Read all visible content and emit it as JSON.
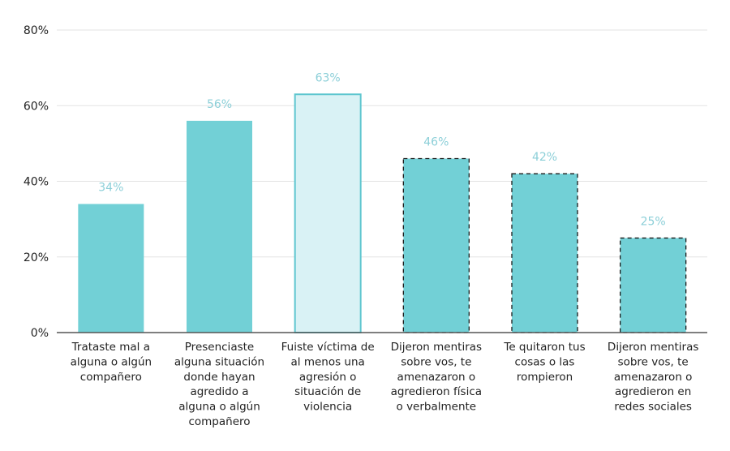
{
  "chart_data": {
    "type": "bar",
    "categories": [
      [
        "Trataste mal a",
        "alguna o algún",
        "compañero"
      ],
      [
        "Presenciaste",
        "alguna situación",
        "donde hayan",
        "agredido a",
        "alguna o algún",
        "compañero"
      ],
      [
        "Fuiste víctima de",
        "al menos una",
        "agresión o",
        "situación de",
        "violencia"
      ],
      [
        "Dijeron mentiras",
        "sobre vos, te",
        "amenazaron o",
        "agredieron física",
        "o verbalmente"
      ],
      [
        "Te quitaron tus",
        "cosas o las",
        "rompieron"
      ],
      [
        "Dijeron mentiras",
        "sobre vos, te",
        "amenazaron o",
        "agredieron en",
        "redes sociales"
      ]
    ],
    "values": [
      34,
      56,
      63,
      46,
      42,
      25
    ],
    "data_labels": [
      "34%",
      "56%",
      "63%",
      "46%",
      "42%",
      "25%"
    ],
    "bar_styles": [
      "solid",
      "solid",
      "highlight",
      "dashed",
      "dashed",
      "dashed"
    ],
    "ylim": [
      0,
      80
    ],
    "yticks": [
      0,
      20,
      40,
      60,
      80
    ],
    "ytick_labels": [
      "0%",
      "20%",
      "40%",
      "60%",
      "80%"
    ],
    "grid": true,
    "colors": {
      "bar": "#72d0d6",
      "highlight_fill": "#d9f2f5",
      "highlight_stroke": "#5ec6cf",
      "dashed_stroke": "#1a1a1a",
      "label": "#8ccfd8",
      "grid": "#e3e3e3",
      "axis": "#555555"
    }
  }
}
